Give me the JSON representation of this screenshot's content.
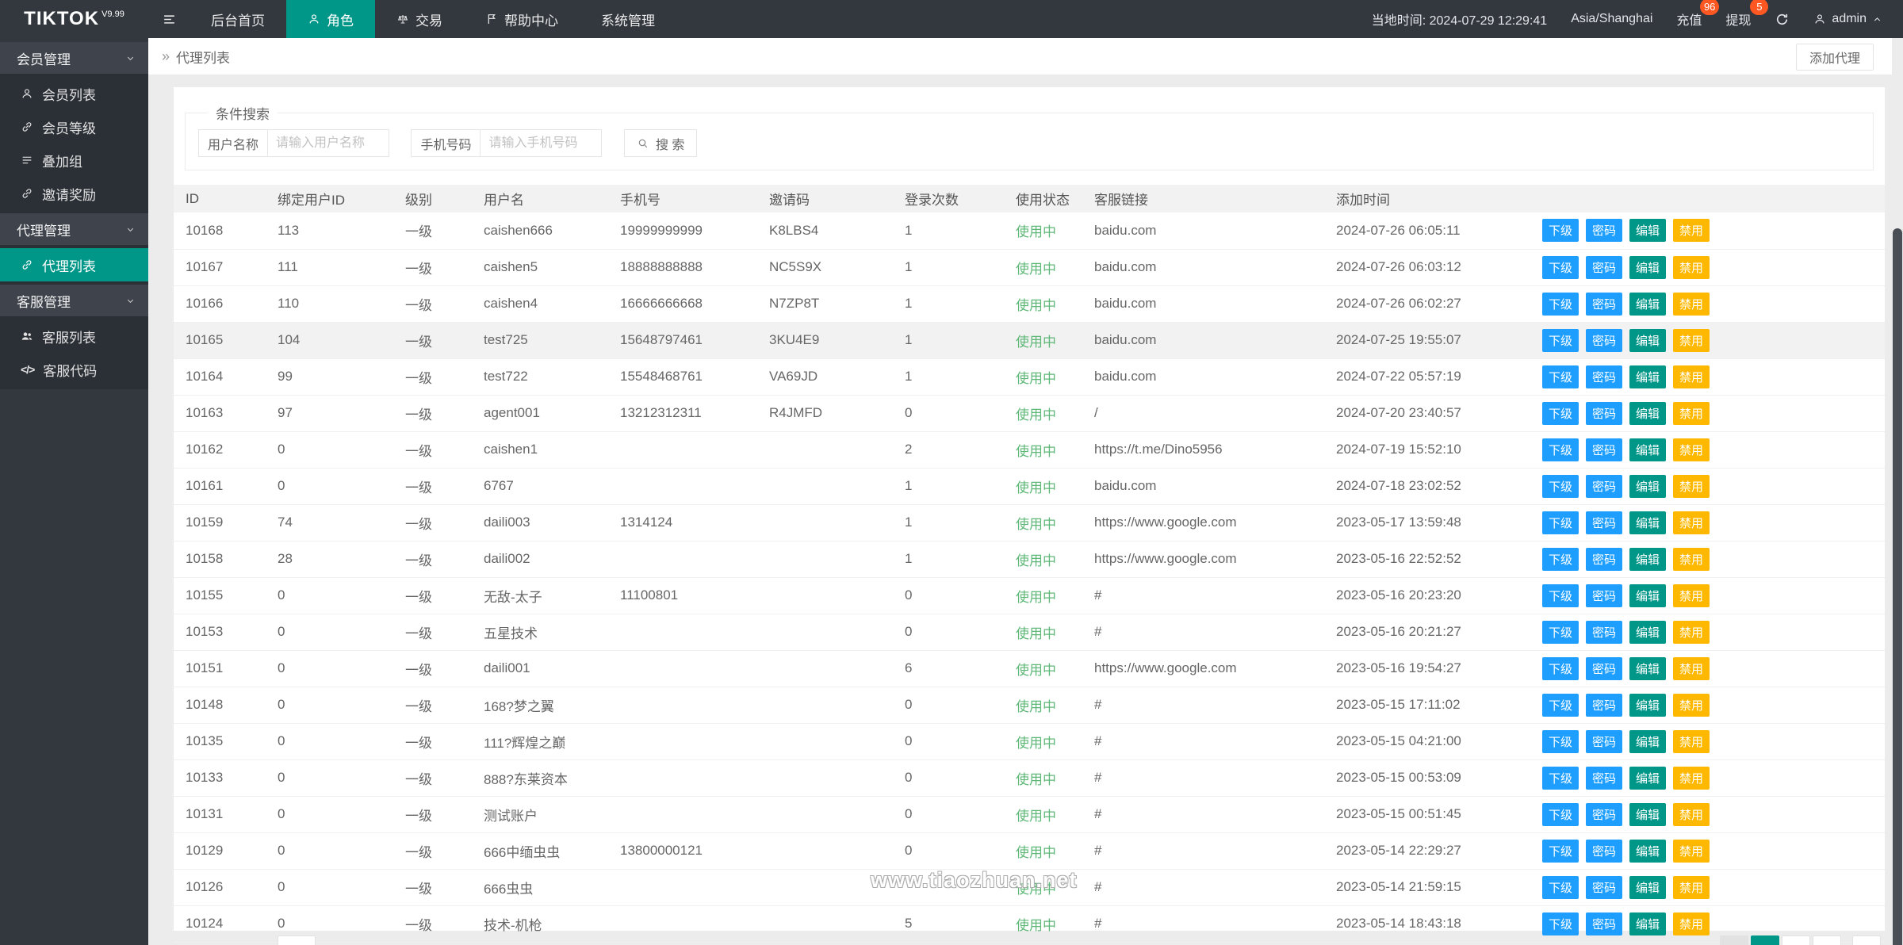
{
  "colors": {
    "accent": "#009688",
    "blue": "#1E9FFF",
    "yellow": "#FFB800",
    "green": "#5FB878",
    "badge": "#FF5722"
  },
  "header": {
    "logo": "TIKTOK",
    "logo_version": "V9.99",
    "nav": [
      {
        "label": "后台首页",
        "icon": "",
        "active": false
      },
      {
        "label": "角色",
        "icon": "person",
        "active": true
      },
      {
        "label": "交易",
        "icon": "scales",
        "active": false
      },
      {
        "label": "帮助中心",
        "icon": "flag",
        "active": false
      },
      {
        "label": "系统管理",
        "icon": "",
        "active": false
      }
    ],
    "local_time": "当地时间: 2024-07-29 12:29:41",
    "timezone": "Asia/Shanghai",
    "recharge": {
      "label": "充值",
      "badge": "96"
    },
    "withdraw": {
      "label": "提现",
      "badge": "5"
    },
    "user": "admin"
  },
  "sidebar": {
    "groups": [
      {
        "label": "会员管理",
        "items": [
          {
            "icon": "person",
            "label": "会员列表",
            "active": false
          },
          {
            "icon": "link",
            "label": "会员等级",
            "active": false
          },
          {
            "icon": "list",
            "label": "叠加组",
            "active": false
          },
          {
            "icon": "link",
            "label": "邀请奖励",
            "active": false
          }
        ]
      },
      {
        "label": "代理管理",
        "items": [
          {
            "icon": "link",
            "label": "代理列表",
            "active": true
          }
        ]
      },
      {
        "label": "客服管理",
        "items": [
          {
            "icon": "users",
            "label": "客服列表",
            "active": false
          },
          {
            "icon": "code",
            "label": "客服代码",
            "active": false
          }
        ]
      }
    ]
  },
  "breadcrumb": {
    "symbol": "»",
    "label": "代理列表"
  },
  "add_button": "添加代理",
  "search": {
    "legend": "条件搜索",
    "username_label": "用户名称",
    "username_placeholder": "请输入用户名称",
    "phone_label": "手机号码",
    "phone_placeholder": "请输入手机号码",
    "button_label": "搜 索"
  },
  "table": {
    "columns": [
      "ID",
      "绑定用户ID",
      "级别",
      "用户名",
      "手机号",
      "邀请码",
      "登录次数",
      "使用状态",
      "客服链接",
      "添加时间",
      ""
    ],
    "actions": [
      {
        "name": "subordinate",
        "label": "下级",
        "color": "#1E9FFF"
      },
      {
        "name": "password",
        "label": "密码",
        "color": "#1E9FFF"
      },
      {
        "name": "edit",
        "label": "编辑",
        "color": "#009688"
      },
      {
        "name": "disable",
        "label": "禁用",
        "color": "#FFB800"
      }
    ],
    "rows": [
      {
        "id": "10168",
        "bind_user_id": "113",
        "level": "一级",
        "username": "caishen666",
        "phone": "19999999999",
        "invite_code": "K8LBS4",
        "login_count": "1",
        "status": "使用中",
        "link": "baidu.com",
        "added_time": "2024-07-26 06:05:11",
        "highlight": false
      },
      {
        "id": "10167",
        "bind_user_id": "111",
        "level": "一级",
        "username": "caishen5",
        "phone": "18888888888",
        "invite_code": "NC5S9X",
        "login_count": "1",
        "status": "使用中",
        "link": "baidu.com",
        "added_time": "2024-07-26 06:03:12",
        "highlight": false
      },
      {
        "id": "10166",
        "bind_user_id": "110",
        "level": "一级",
        "username": "caishen4",
        "phone": "16666666668",
        "invite_code": "N7ZP8T",
        "login_count": "1",
        "status": "使用中",
        "link": "baidu.com",
        "added_time": "2024-07-26 06:02:27",
        "highlight": false
      },
      {
        "id": "10165",
        "bind_user_id": "104",
        "level": "一级",
        "username": "test725",
        "phone": "15648797461",
        "invite_code": "3KU4E9",
        "login_count": "1",
        "status": "使用中",
        "link": "baidu.com",
        "added_time": "2024-07-25 19:55:07",
        "highlight": true
      },
      {
        "id": "10164",
        "bind_user_id": "99",
        "level": "一级",
        "username": "test722",
        "phone": "15548468761",
        "invite_code": "VA69JD",
        "login_count": "1",
        "status": "使用中",
        "link": "baidu.com",
        "added_time": "2024-07-22 05:57:19",
        "highlight": false
      },
      {
        "id": "10163",
        "bind_user_id": "97",
        "level": "一级",
        "username": "agent001",
        "phone": "13212312311",
        "invite_code": "R4JMFD",
        "login_count": "0",
        "status": "使用中",
        "link": "/",
        "added_time": "2024-07-20 23:40:57",
        "highlight": false
      },
      {
        "id": "10162",
        "bind_user_id": "0",
        "level": "一级",
        "username": "caishen1",
        "phone": "",
        "invite_code": "",
        "login_count": "2",
        "status": "使用中",
        "link": "https://t.me/Dino5956",
        "added_time": "2024-07-19 15:52:10",
        "highlight": false
      },
      {
        "id": "10161",
        "bind_user_id": "0",
        "level": "一级",
        "username": "6767",
        "phone": "",
        "invite_code": "",
        "login_count": "1",
        "status": "使用中",
        "link": "baidu.com",
        "added_time": "2024-07-18 23:02:52",
        "highlight": false
      },
      {
        "id": "10159",
        "bind_user_id": "74",
        "level": "一级",
        "username": "daili003",
        "phone": "1314124",
        "invite_code": "",
        "login_count": "1",
        "status": "使用中",
        "link": "https://www.google.com",
        "added_time": "2023-05-17 13:59:48",
        "highlight": false
      },
      {
        "id": "10158",
        "bind_user_id": "28",
        "level": "一级",
        "username": "daili002",
        "phone": "",
        "invite_code": "",
        "login_count": "1",
        "status": "使用中",
        "link": "https://www.google.com",
        "added_time": "2023-05-16 22:52:52",
        "highlight": false
      },
      {
        "id": "10155",
        "bind_user_id": "0",
        "level": "一级",
        "username": "无敌-太子",
        "phone": "11100801",
        "invite_code": "",
        "login_count": "0",
        "status": "使用中",
        "link": "#",
        "added_time": "2023-05-16 20:23:20",
        "highlight": false
      },
      {
        "id": "10153",
        "bind_user_id": "0",
        "level": "一级",
        "username": "五星技术",
        "phone": "",
        "invite_code": "",
        "login_count": "0",
        "status": "使用中",
        "link": "#",
        "added_time": "2023-05-16 20:21:27",
        "highlight": false
      },
      {
        "id": "10151",
        "bind_user_id": "0",
        "level": "一级",
        "username": "daili001",
        "phone": "",
        "invite_code": "",
        "login_count": "6",
        "status": "使用中",
        "link": "https://www.google.com",
        "added_time": "2023-05-16 19:54:27",
        "highlight": false
      },
      {
        "id": "10148",
        "bind_user_id": "0",
        "level": "一级",
        "username": "168?梦之翼",
        "phone": "",
        "invite_code": "",
        "login_count": "0",
        "status": "使用中",
        "link": "#",
        "added_time": "2023-05-15 17:11:02",
        "highlight": false
      },
      {
        "id": "10135",
        "bind_user_id": "0",
        "level": "一级",
        "username": "111?辉煌之巅",
        "phone": "",
        "invite_code": "",
        "login_count": "0",
        "status": "使用中",
        "link": "#",
        "added_time": "2023-05-15 04:21:00",
        "highlight": false
      },
      {
        "id": "10133",
        "bind_user_id": "0",
        "level": "一级",
        "username": "888?东莱资本",
        "phone": "",
        "invite_code": "",
        "login_count": "0",
        "status": "使用中",
        "link": "#",
        "added_time": "2023-05-15 00:53:09",
        "highlight": false
      },
      {
        "id": "10131",
        "bind_user_id": "0",
        "level": "一级",
        "username": "测试账户",
        "phone": "",
        "invite_code": "",
        "login_count": "0",
        "status": "使用中",
        "link": "#",
        "added_time": "2023-05-15 00:51:45",
        "highlight": false
      },
      {
        "id": "10129",
        "bind_user_id": "0",
        "level": "一级",
        "username": "666中缅虫虫",
        "phone": "13800000121",
        "invite_code": "",
        "login_count": "0",
        "status": "使用中",
        "link": "#",
        "added_time": "2023-05-14 22:29:27",
        "highlight": false
      },
      {
        "id": "10126",
        "bind_user_id": "0",
        "level": "一级",
        "username": "666虫虫",
        "phone": "",
        "invite_code": "",
        "login_count": "",
        "status": "使用中",
        "link": "#",
        "added_time": "2023-05-14 21:59:15",
        "highlight": false
      },
      {
        "id": "10124",
        "bind_user_id": "0",
        "level": "一级",
        "username": "技术-机枪",
        "phone": "",
        "invite_code": "",
        "login_count": "5",
        "status": "使用中",
        "link": "#",
        "added_time": "2023-05-14 18:43:18",
        "highlight": false
      }
    ]
  },
  "pagination": {
    "boxes": [
      {
        "state": "prev"
      },
      {
        "state": "active"
      },
      {
        "state": "normal"
      },
      {
        "state": "normal"
      },
      {
        "state": "normal",
        "gap_before": true
      }
    ]
  },
  "watermark": "www.tiaozhuan.net"
}
